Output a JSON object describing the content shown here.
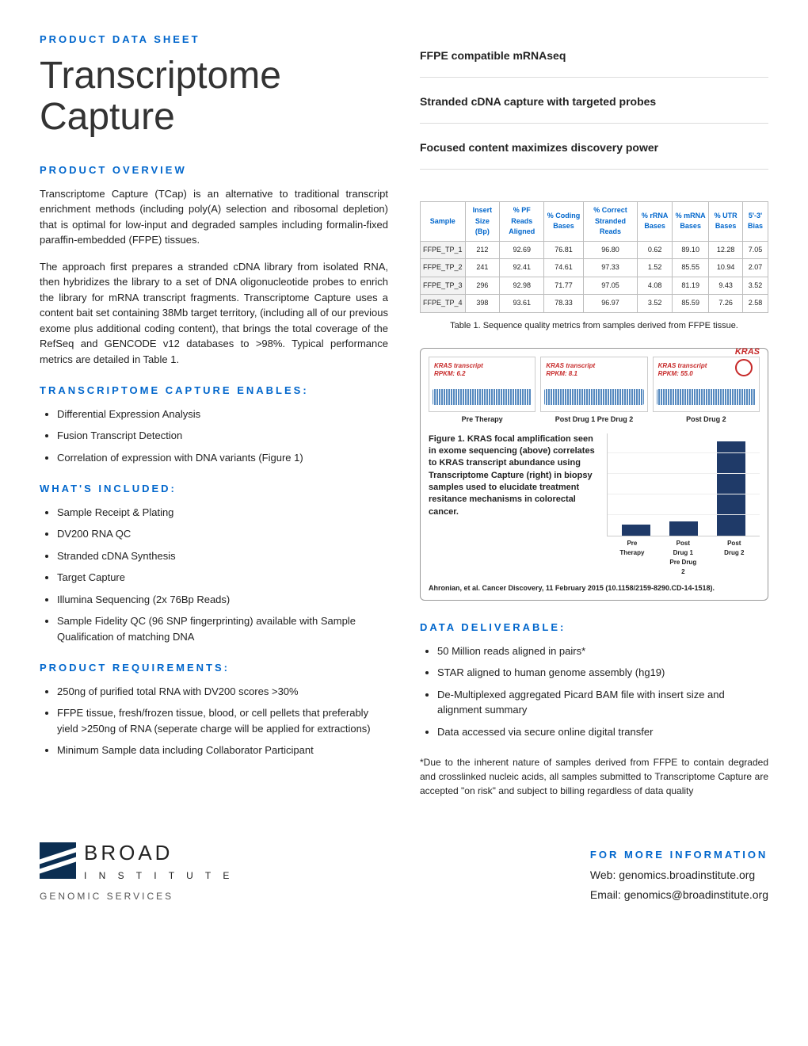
{
  "eyebrow": "PRODUCT DATA SHEET",
  "title": "Transcriptome Capture",
  "features": [
    "FFPE compatible mRNAseq",
    "Stranded cDNA capture with targeted probes",
    "Focused content maximizes discovery power"
  ],
  "overview_head": "PRODUCT OVERVIEW",
  "overview_p1": "Transcriptome Capture (TCap) is an alternative to traditional transcript enrichment methods (including poly(A) selection and ribosomal depletion) that is optimal for low-input and degraded samples including formalin-fixed paraffin-embedded (FFPE) tissues.",
  "overview_p2": "The approach first prepares a stranded cDNA library from isolated RNA, then hybridizes the library to a set of DNA oligonucleotide probes to enrich the library for mRNA transcript fragments. Transcriptome Capture uses a content bait set containing 38Mb target territory, (including all of our previous exome plus additional coding content), that brings the total coverage of the RefSeq and GENCODE v12 databases to >98%. Typical performance metrics are detailed in Table 1.",
  "enables_head": "TRANSCRIPTOME CAPTURE ENABLES:",
  "enables": [
    "Differential Expression Analysis",
    "Fusion Transcript Detection",
    "Correlation of expression with DNA variants (Figure 1)"
  ],
  "included_head": "WHAT'S INCLUDED:",
  "included": [
    "Sample Receipt & Plating",
    "DV200 RNA QC",
    "Stranded cDNA Synthesis",
    "Target Capture",
    "Illumina Sequencing (2x 76Bp Reads)",
    "Sample Fidelity QC (96 SNP fingerprinting) available with Sample Qualification of matching DNA"
  ],
  "requirements_head": "PRODUCT REQUIREMENTS:",
  "requirements": [
    "250ng of purified total RNA with DV200 scores >30%",
    "FFPE tissue, fresh/frozen tissue, blood, or cell pellets that preferably yield >250ng of RNA (seperate charge will be applied for extractions)",
    "Minimum Sample data including Collaborator Participant"
  ],
  "table": {
    "columns": [
      "Sample",
      "Insert Size (Bp)",
      "% PF Reads Aligned",
      "% Coding Bases",
      "% Correct Stranded Reads",
      "% rRNA Bases",
      "% mRNA Bases",
      "% UTR Bases",
      "5'-3' Bias"
    ],
    "rows": [
      [
        "FFPE_TP_1",
        "212",
        "92.69",
        "76.81",
        "96.80",
        "0.62",
        "89.10",
        "12.28",
        "7.05"
      ],
      [
        "FFPE_TP_2",
        "241",
        "92.41",
        "74.61",
        "97.33",
        "1.52",
        "85.55",
        "10.94",
        "2.07"
      ],
      [
        "FFPE_TP_3",
        "296",
        "92.98",
        "71.77",
        "97.05",
        "4.08",
        "81.19",
        "9.43",
        "3.52"
      ],
      [
        "FFPE_TP_4",
        "398",
        "93.61",
        "78.33",
        "96.97",
        "3.52",
        "85.59",
        "7.26",
        "2.58"
      ]
    ],
    "caption": "Table 1.  Sequence quality metrics from samples derived from FFPE tissue."
  },
  "figure": {
    "kras_tag": "KRAS",
    "panels": [
      {
        "rpkm_label": "KRAS transcript",
        "rpkm_value": "RPKM: 6.2",
        "label": "Pre Therapy",
        "circle": false
      },
      {
        "rpkm_label": "KRAS transcript",
        "rpkm_value": "RPKM: 8.1",
        "label": "Post Drug 1 Pre Drug 2",
        "circle": false
      },
      {
        "rpkm_label": "KRAS transcript",
        "rpkm_value": "RPKM: 55.0",
        "label": "Post Drug 2",
        "circle": true
      }
    ],
    "text": "Figure 1.  KRAS focal amplification seen in exome sequencing (above) correlates to KRAS transcript abundance using Transcriptome Capture (right) in biopsy samples used to elucidate treatment resitance mechanisms in colorectal cancer.",
    "bars": {
      "labels": [
        "Pre Therapy",
        "Post Drug 1 Pre Drug 2",
        "Post Drug 2"
      ],
      "values": [
        6.2,
        8.1,
        55.0
      ],
      "max": 60,
      "bar_color": "#1f3a68"
    },
    "citation": "Ahronian, et al. Cancer Discovery, 11 February 2015 (10.1158/2159-8290.CD-14-1518)."
  },
  "deliverable_head": "DATA DELIVERABLE:",
  "deliverable": [
    "50 Million reads aligned in pairs*",
    "STAR aligned to human genome assembly (hg19)",
    "De-Multiplexed aggregated Picard BAM file with insert size and alignment summary",
    "Data accessed via secure online digital transfer"
  ],
  "footnote": "*Due to the inherent nature of samples derived from FFPE to contain degraded and crosslinked nucleic acids, all samples submitted to Transcriptome Capture are accepted \"on risk\" and subject to billing regardless of data quality",
  "footer": {
    "logo_main": "BROAD",
    "logo_sub": "I N S T I T U T E",
    "logo_service": "GENOMIC SERVICES",
    "more_head": "FOR MORE INFORMATION",
    "web": "Web: genomics.broadinstitute.org",
    "email": "Email: genomics@broadinstitute.org"
  }
}
